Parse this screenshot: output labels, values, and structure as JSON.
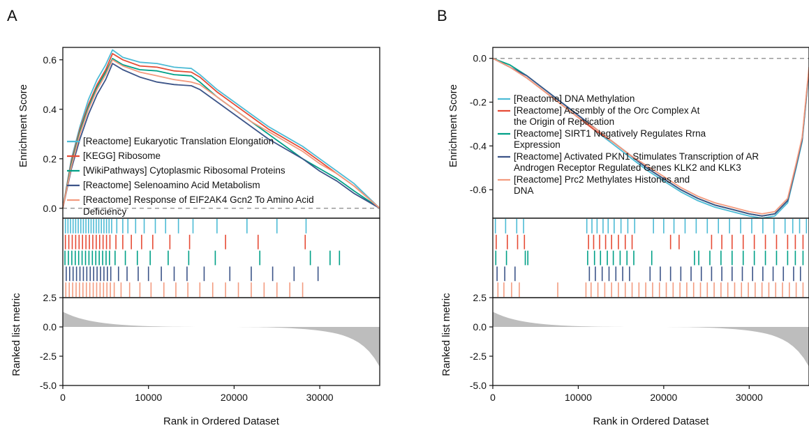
{
  "chart_data": [
    {
      "type": "line",
      "panel_label": "A",
      "xlabel": "Rank in Ordered Dataset",
      "ylabel_top": "Enrichment Score",
      "ylabel_bottom": "Ranked list metric",
      "xlim": [
        0,
        37000
      ],
      "x_ticks": [
        "0",
        "10000",
        "20000",
        "30000"
      ],
      "x_tick_values": [
        0,
        10000,
        20000,
        30000
      ],
      "es_ylim": [
        -0.04,
        0.65
      ],
      "es_ticks": [
        "0.0",
        "0.2",
        "0.4",
        "0.6"
      ],
      "es_tick_values": [
        0,
        0.2,
        0.4,
        0.6
      ],
      "metric_ylim": [
        -5.0,
        2.5
      ],
      "metric_ticks": [
        "2.5",
        "0.0",
        "-2.5",
        "-5.0"
      ],
      "metric_tick_values": [
        2.5,
        0,
        -2.5,
        -5.0
      ],
      "metric_curve": {
        "start": 1.3,
        "end": -3.4,
        "zero_crossing_rank": 18000
      },
      "legend_position": "bottom-left",
      "series": [
        {
          "name": "[Reactome] Eukaryotic Translation Elongation",
          "color": "#4DBBD5",
          "x": [
            0,
            1000,
            2000,
            3000,
            4000,
            5000,
            5800,
            7000,
            9000,
            11000,
            13000,
            15000,
            16000,
            18000,
            20000,
            22000,
            24000,
            26000,
            28000,
            30000,
            32000,
            34000,
            37000
          ],
          "y": [
            0,
            0.2,
            0.33,
            0.44,
            0.52,
            0.58,
            0.64,
            0.61,
            0.59,
            0.585,
            0.57,
            0.565,
            0.54,
            0.48,
            0.43,
            0.38,
            0.33,
            0.29,
            0.25,
            0.2,
            0.15,
            0.1,
            0
          ],
          "hits": [
            300,
            600,
            900,
            1200,
            1500,
            1800,
            2100,
            2400,
            2700,
            3000,
            3300,
            3600,
            3900,
            4200,
            4500,
            4800,
            5100,
            5400,
            5700,
            6300,
            7000,
            7600,
            8500,
            9500,
            10800,
            12000,
            13500,
            15200,
            18000,
            21500,
            25000,
            28400
          ]
        },
        {
          "name": "[KEGG] Ribosome",
          "color": "#E64B35",
          "x": [
            0,
            1000,
            2000,
            3000,
            4000,
            5000,
            5800,
            7000,
            9000,
            11000,
            13000,
            15000,
            16000,
            18000,
            20000,
            22000,
            24000,
            26000,
            28000,
            30000,
            32000,
            34000,
            37000
          ],
          "y": [
            0,
            0.19,
            0.32,
            0.42,
            0.5,
            0.56,
            0.625,
            0.6,
            0.575,
            0.57,
            0.555,
            0.55,
            0.53,
            0.47,
            0.42,
            0.37,
            0.32,
            0.28,
            0.24,
            0.19,
            0.14,
            0.09,
            0
          ],
          "hits": [
            300,
            700,
            1100,
            1500,
            1900,
            2300,
            2700,
            3100,
            3500,
            3900,
            4300,
            4700,
            5100,
            5500,
            6200,
            7000,
            8000,
            9200,
            10500,
            12500,
            14800,
            19000,
            22800,
            28300
          ]
        },
        {
          "name": "[WikiPathways] Cytoplasmic Ribosomal Proteins",
          "color": "#00A087",
          "x": [
            0,
            1000,
            2000,
            3000,
            4000,
            5000,
            5800,
            7000,
            9000,
            11000,
            13000,
            15000,
            16000,
            18000,
            20000,
            22000,
            24000,
            26000,
            28000,
            30000,
            32000,
            34000,
            37000
          ],
          "y": [
            0,
            0.18,
            0.31,
            0.41,
            0.49,
            0.55,
            0.605,
            0.58,
            0.56,
            0.555,
            0.54,
            0.535,
            0.51,
            0.45,
            0.4,
            0.35,
            0.3,
            0.25,
            0.2,
            0.16,
            0.12,
            0.07,
            0
          ],
          "hits": [
            250,
            650,
            1050,
            1450,
            1850,
            2250,
            2650,
            3050,
            3450,
            3850,
            4250,
            4650,
            5050,
            5450,
            6100,
            7300,
            8700,
            10200,
            12300,
            14700,
            17800,
            23000,
            28900,
            31200,
            32300
          ]
        },
        {
          "name": "[Reactome] Selenoamino Acid Metabolism",
          "color": "#3C5488",
          "x": [
            0,
            1000,
            2000,
            3000,
            4000,
            5000,
            5800,
            7000,
            9000,
            11000,
            13000,
            15000,
            16000,
            18000,
            20000,
            22000,
            24000,
            26000,
            28000,
            30000,
            32000,
            34000,
            37000
          ],
          "y": [
            0,
            0.16,
            0.28,
            0.38,
            0.46,
            0.52,
            0.585,
            0.56,
            0.53,
            0.51,
            0.5,
            0.495,
            0.48,
            0.43,
            0.38,
            0.33,
            0.28,
            0.24,
            0.2,
            0.15,
            0.11,
            0.06,
            0
          ],
          "hits": [
            400,
            800,
            1200,
            1600,
            2000,
            2400,
            2800,
            3200,
            3600,
            4000,
            4400,
            4800,
            5200,
            5600,
            6500,
            7500,
            8800,
            10000,
            11500,
            13000,
            14500,
            16500,
            19500,
            22000,
            24500,
            27000,
            29800
          ]
        },
        {
          "name": "[Reactome] Response of EIF2AK4 Gcn2 To Amino Acid Deficiency",
          "color": "#F39B7F",
          "x": [
            0,
            1000,
            2000,
            3000,
            4000,
            5000,
            5800,
            7000,
            9000,
            11000,
            13000,
            15000,
            16000,
            18000,
            20000,
            22000,
            24000,
            26000,
            28000,
            30000,
            32000,
            34000,
            37000
          ],
          "y": [
            0,
            0.17,
            0.3,
            0.4,
            0.48,
            0.54,
            0.6,
            0.575,
            0.55,
            0.535,
            0.52,
            0.51,
            0.5,
            0.45,
            0.4,
            0.35,
            0.31,
            0.27,
            0.23,
            0.18,
            0.14,
            0.09,
            0
          ],
          "hits": [
            350,
            750,
            1150,
            1550,
            1950,
            2350,
            2750,
            3150,
            3550,
            3950,
            4350,
            4750,
            5150,
            5550,
            6000,
            6800,
            7800,
            9000,
            10300,
            11800,
            13200,
            14600,
            16000,
            17500,
            19000,
            20500,
            22000,
            23500,
            25000,
            26500,
            28000
          ]
        }
      ]
    },
    {
      "type": "line",
      "panel_label": "B",
      "xlabel": "Rank in Ordered Dataset",
      "ylabel_top": "Enrichment Score",
      "ylabel_bottom": "Ranked list metric",
      "xlim": [
        0,
        37000
      ],
      "x_ticks": [
        "0",
        "10000",
        "20000",
        "30000"
      ],
      "x_tick_values": [
        0,
        10000,
        20000,
        30000
      ],
      "es_ylim": [
        -0.73,
        0.05
      ],
      "es_ticks": [
        "0.0",
        "-0.2",
        "-0.4",
        "-0.6"
      ],
      "es_tick_values": [
        0,
        -0.2,
        -0.4,
        -0.6
      ],
      "metric_ylim": [
        -5.0,
        2.5
      ],
      "metric_ticks": [
        "2.5",
        "0.0",
        "-2.5",
        "-5.0"
      ],
      "metric_tick_values": [
        2.5,
        0,
        -2.5,
        -5.0
      ],
      "metric_curve": {
        "start": 1.3,
        "end": -3.4,
        "zero_crossing_rank": 18000
      },
      "legend_position": "top-left",
      "series": [
        {
          "name": "[Reactome] DNA Methylation",
          "color": "#4DBBD5",
          "x": [
            0,
            2000,
            4000,
            6000,
            8000,
            10000,
            12000,
            14000,
            16000,
            18000,
            20000,
            22000,
            24000,
            26000,
            28000,
            30000,
            31500,
            33000,
            34500,
            35500,
            36200,
            37000
          ],
          "y": [
            0,
            -0.04,
            -0.09,
            -0.15,
            -0.21,
            -0.27,
            -0.33,
            -0.39,
            -0.45,
            -0.51,
            -0.56,
            -0.61,
            -0.65,
            -0.68,
            -0.7,
            -0.72,
            -0.73,
            -0.72,
            -0.66,
            -0.5,
            -0.38,
            -0.06
          ],
          "hits": [
            300,
            1500,
            2800,
            3600,
            11000,
            11600,
            12200,
            12900,
            13500,
            14200,
            15000,
            15800,
            16600,
            18800,
            20000,
            21200,
            22500,
            23800,
            25100,
            26400,
            27700,
            29000,
            30300,
            31600,
            32900,
            34200,
            35100,
            35900,
            36700
          ]
        },
        {
          "name": "[Reactome] Assembly of the Orc Complex At the Origin of Replication",
          "color": "#E64B35",
          "x": [
            0,
            2000,
            4000,
            6000,
            8000,
            10000,
            12000,
            14000,
            16000,
            18000,
            20000,
            22000,
            24000,
            26000,
            28000,
            30000,
            31500,
            33000,
            34500,
            35500,
            36200,
            37000
          ],
          "y": [
            0,
            -0.04,
            -0.09,
            -0.15,
            -0.21,
            -0.27,
            -0.33,
            -0.38,
            -0.44,
            -0.5,
            -0.55,
            -0.6,
            -0.64,
            -0.67,
            -0.69,
            -0.71,
            -0.72,
            -0.71,
            -0.65,
            -0.49,
            -0.37,
            -0.05
          ],
          "hits": [
            400,
            1700,
            2900,
            3700,
            11200,
            11800,
            12500,
            13200,
            13900,
            14700,
            15500,
            16300,
            20800,
            21800,
            25600,
            26800,
            28000,
            29300,
            30600,
            31900,
            33200,
            34500,
            35400,
            36300
          ]
        },
        {
          "name": "[Reactome] SIRT1 Negatively Regulates Rrna Expression",
          "color": "#00A087",
          "x": [
            0,
            2000,
            4000,
            6000,
            8000,
            10000,
            12000,
            14000,
            16000,
            18000,
            20000,
            22000,
            24000,
            26000,
            28000,
            30000,
            31500,
            33000,
            34500,
            35500,
            36200,
            37000
          ],
          "y": [
            0,
            -0.03,
            -0.08,
            -0.14,
            -0.2,
            -0.26,
            -0.32,
            -0.38,
            -0.44,
            -0.5,
            -0.55,
            -0.6,
            -0.64,
            -0.67,
            -0.69,
            -0.71,
            -0.72,
            -0.71,
            -0.65,
            -0.49,
            -0.37,
            -0.05
          ],
          "hits": [
            350,
            1600,
            3800,
            4100,
            11100,
            11900,
            12600,
            13400,
            14100,
            14900,
            15700,
            16500,
            18600,
            23600,
            24100,
            25400,
            26700,
            28000,
            29300,
            30600,
            31900,
            33200,
            34500,
            35400,
            36300
          ]
        },
        {
          "name": "[Reactome] Activated PKN1 Stimulates Transcription of AR Androgen Receptor Regulated Genes KLK2 and KLK3",
          "color": "#3C5488",
          "x": [
            0,
            2000,
            4000,
            6000,
            8000,
            10000,
            12000,
            14000,
            16000,
            18000,
            20000,
            22000,
            24000,
            26000,
            28000,
            30000,
            31500,
            33000,
            34500,
            35500,
            36200,
            37000
          ],
          "y": [
            0,
            -0.04,
            -0.08,
            -0.14,
            -0.2,
            -0.26,
            -0.32,
            -0.38,
            -0.44,
            -0.5,
            -0.55,
            -0.6,
            -0.64,
            -0.67,
            -0.69,
            -0.71,
            -0.72,
            -0.71,
            -0.65,
            -0.49,
            -0.37,
            -0.05
          ],
          "hits": [
            500,
            1400,
            2600,
            11300,
            12000,
            12800,
            13600,
            14400,
            15200,
            16000,
            18400,
            19600,
            20800,
            22000,
            23200,
            24400,
            25600,
            26800,
            28000,
            29200,
            30400,
            31600,
            32800,
            34000,
            35200,
            36000
          ]
        },
        {
          "name": "[Reactome] Prc2 Methylates Histones and DNA",
          "color": "#F39B7F",
          "x": [
            0,
            2000,
            4000,
            6000,
            8000,
            10000,
            12000,
            14000,
            16000,
            18000,
            20000,
            22000,
            24000,
            26000,
            28000,
            30000,
            31500,
            33000,
            34500,
            35500,
            36200,
            37000
          ],
          "y": [
            0,
            -0.04,
            -0.09,
            -0.15,
            -0.21,
            -0.27,
            -0.32,
            -0.38,
            -0.44,
            -0.49,
            -0.54,
            -0.59,
            -0.63,
            -0.66,
            -0.68,
            -0.7,
            -0.71,
            -0.7,
            -0.64,
            -0.48,
            -0.36,
            -0.04
          ],
          "hits": [
            600,
            1300,
            2200,
            3100,
            7600,
            10900,
            11500,
            12300,
            13100,
            13900,
            14700,
            15500,
            16300,
            17100,
            17900,
            18700,
            19500,
            20300,
            21100,
            21900,
            22700,
            23500,
            24300,
            25100,
            25900,
            26700,
            27500,
            28300,
            29100,
            29900,
            30700,
            31500,
            32300,
            33100,
            33900,
            34700,
            35500,
            36300
          ]
        }
      ]
    }
  ]
}
